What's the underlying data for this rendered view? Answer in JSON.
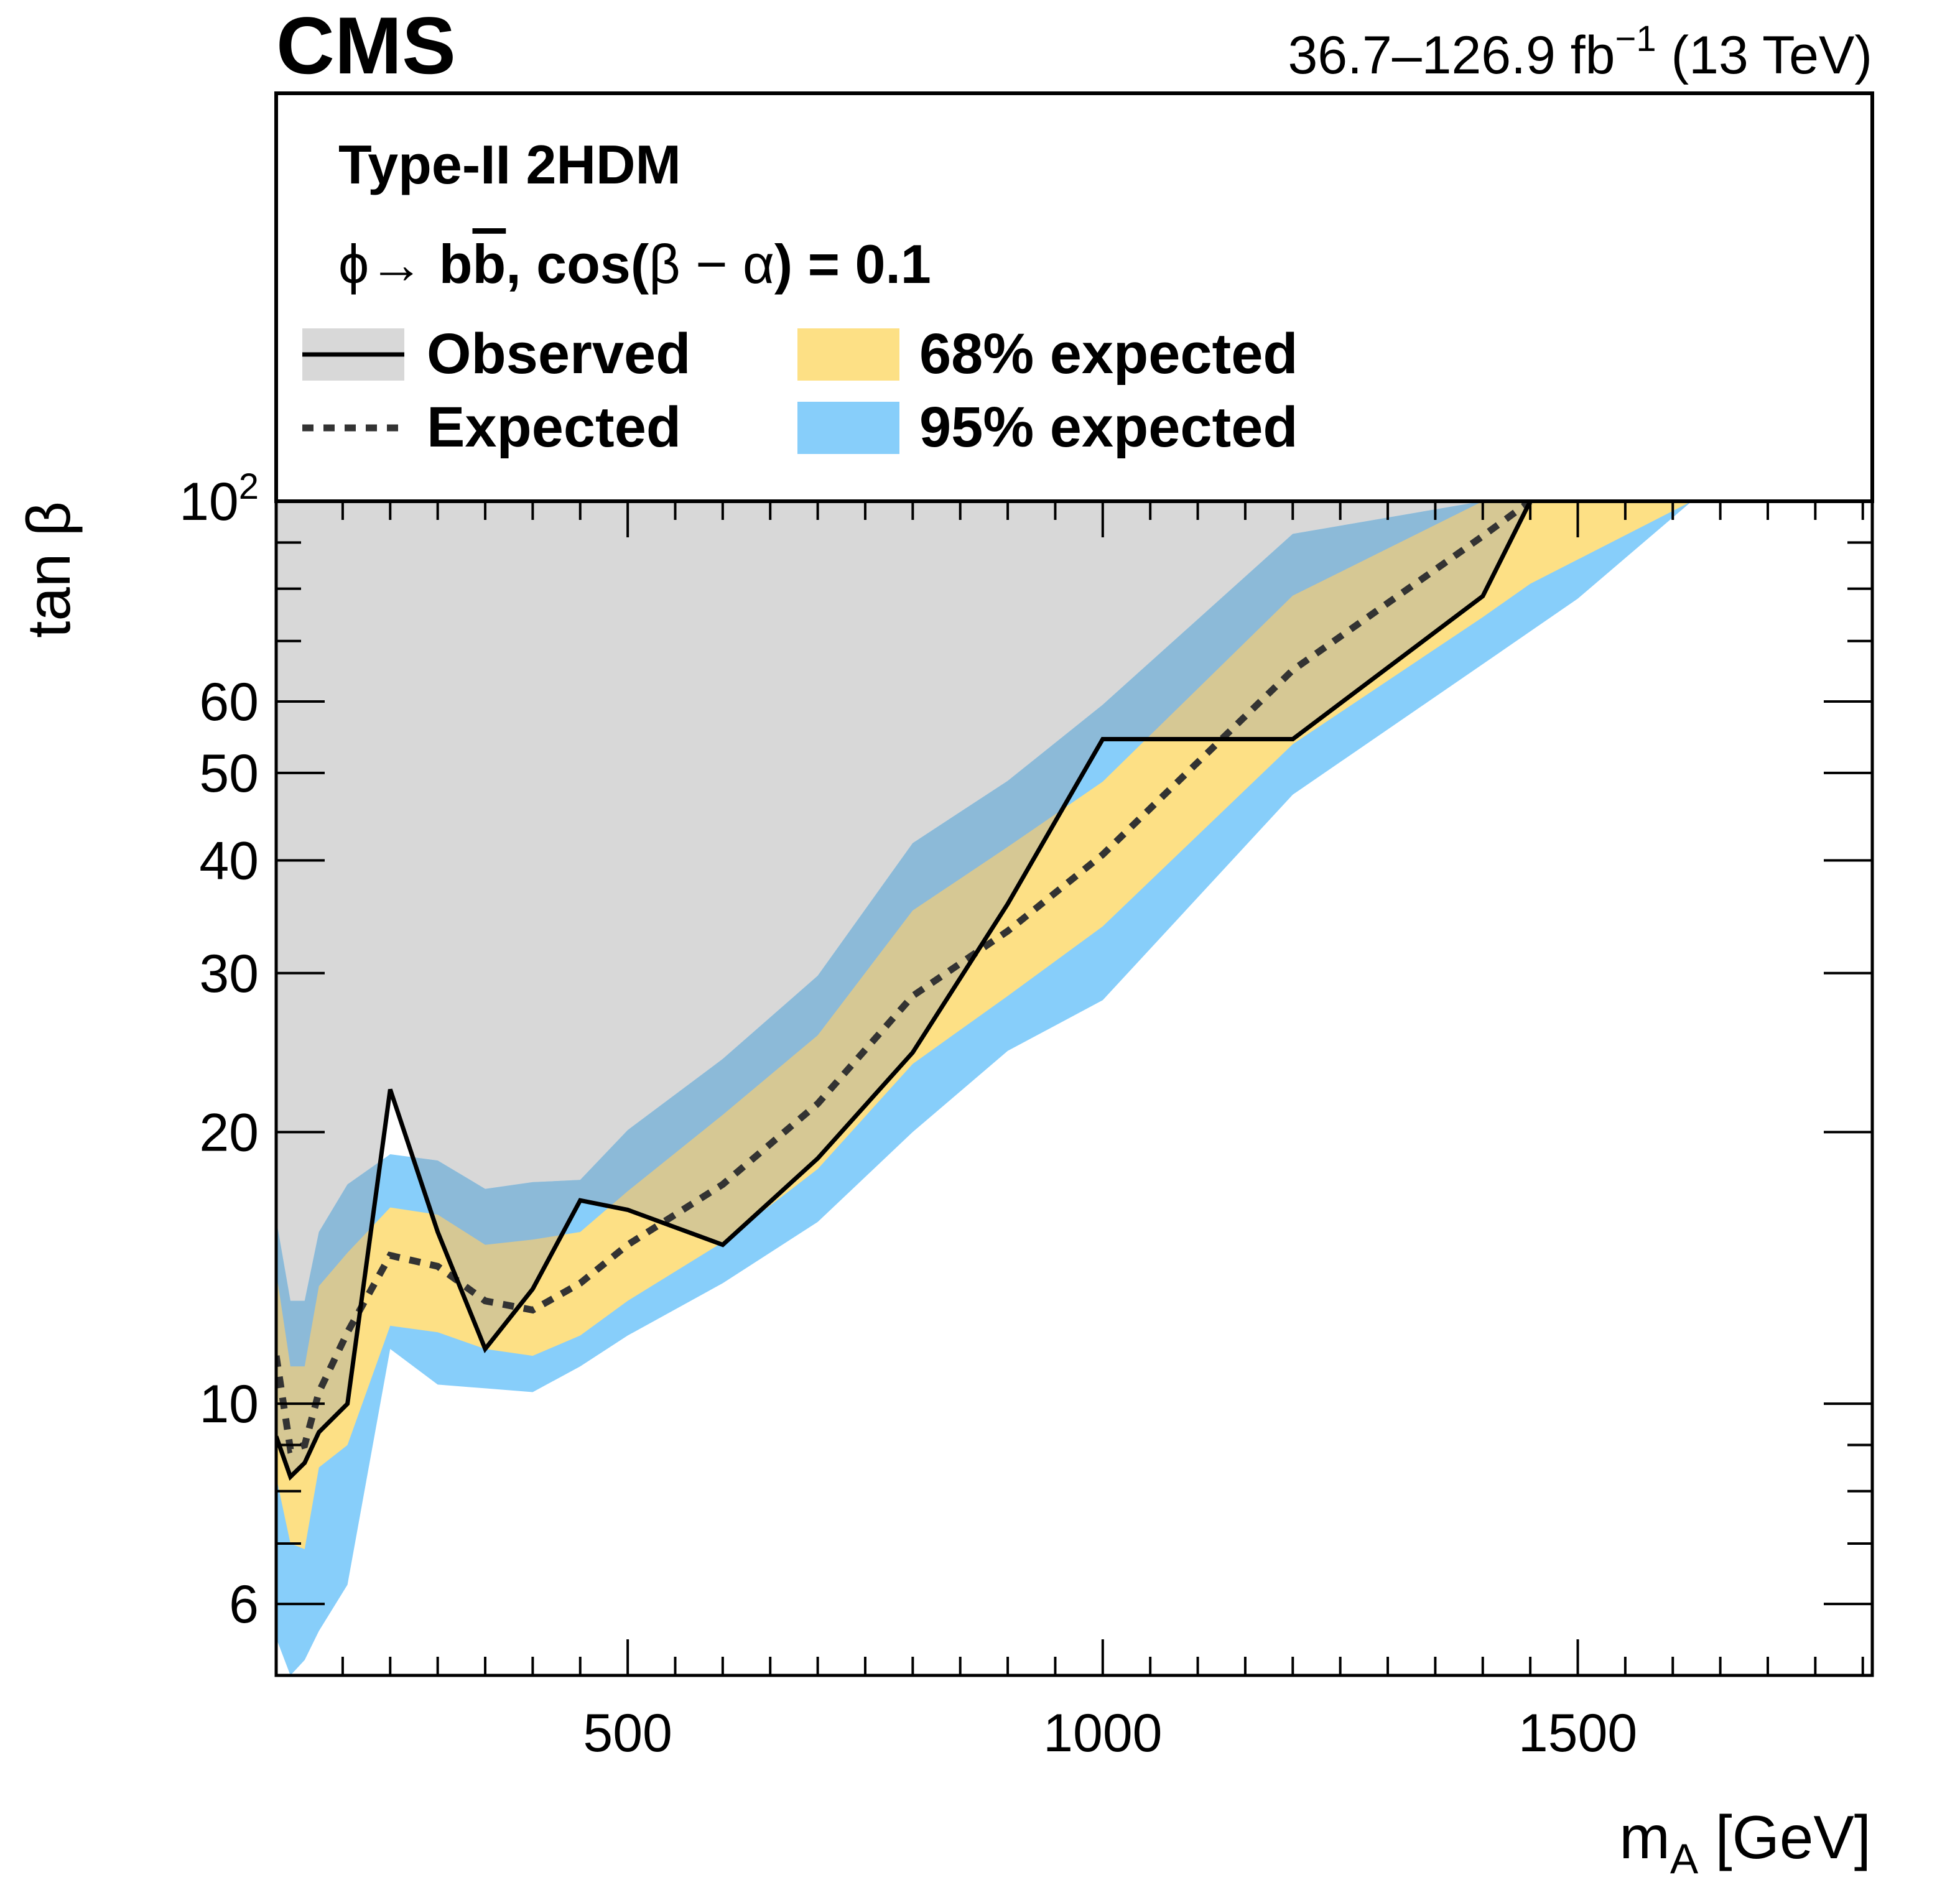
{
  "header": {
    "experiment": "CMS",
    "lumi_main": "36.7–126.9 fb",
    "lumi_exp": "−1",
    "lumi_energy": "(13 TeV)"
  },
  "legend": {
    "line1": "Type-II 2HDM",
    "line2_phi": "ϕ",
    "line2_arrow": "→",
    "line2_b1": "b",
    "line2_b2": "b",
    "line2_rest": ", cos(",
    "line2_beta": "β",
    "line2_minus": " − ",
    "line2_alpha": "α",
    "line2_end": ") = 0.1",
    "observed": "Observed",
    "expected": "Expected",
    "band68": "68% expected",
    "band95": "95% expected"
  },
  "colors": {
    "excluded": "#d8d8d8",
    "band68": "#fde085",
    "band95": "#87cefa",
    "band68_over_excluded": "#d6c894",
    "band95_over_excluded": "#8cbad8",
    "observed_line": "#000000",
    "expected_line": "#333333"
  },
  "chart_data": {
    "type": "line",
    "title": "",
    "xlabel_main": "m",
    "xlabel_sub": "A",
    "xlabel_unit": " [GeV]",
    "ylabel": "tan β",
    "x_range": [
      130,
      1810
    ],
    "y_range": [
      5,
      100
    ],
    "y_scale": "log",
    "x_ticks": [
      {
        "value": 500,
        "label": "500"
      },
      {
        "value": 1000,
        "label": "1000"
      },
      {
        "value": 1500,
        "label": "1500"
      }
    ],
    "y_ticks": [
      {
        "value": 6,
        "label": "6"
      },
      {
        "value": 10,
        "label": "10"
      },
      {
        "value": 20,
        "label": "20"
      },
      {
        "value": 30,
        "label": "30"
      },
      {
        "value": 40,
        "label": "40"
      },
      {
        "value": 50,
        "label": "50"
      },
      {
        "value": 60,
        "label": "60"
      },
      {
        "value": 100,
        "label": "10",
        "exp": "2"
      }
    ],
    "excluded_region": "above observed",
    "series": [
      {
        "name": "Observed",
        "style": "solid",
        "x": [
          130,
          145,
          160,
          175,
          205,
          250,
          300,
          350,
          400,
          450,
          500,
          600,
          700,
          800,
          900,
          1000,
          1200,
          1400,
          1450
        ],
        "y": [
          9.2,
          8.3,
          8.6,
          9.3,
          10.0,
          22.3,
          15.5,
          11.5,
          13.4,
          16.8,
          16.4,
          15.0,
          18.7,
          24.5,
          35.8,
          54.5,
          54.5,
          78.5,
          100
        ]
      },
      {
        "name": "Expected",
        "style": "dashed",
        "x": [
          130,
          145,
          160,
          175,
          205,
          250,
          300,
          350,
          400,
          450,
          500,
          600,
          700,
          800,
          900,
          1000,
          1200,
          1400,
          1450
        ],
        "y": [
          11.3,
          8.9,
          9.0,
          10.3,
          12.0,
          14.6,
          14.2,
          13.0,
          12.7,
          13.6,
          15.0,
          17.5,
          21.5,
          28.3,
          33.4,
          40.6,
          65.0,
          91.5,
          100
        ]
      }
    ],
    "band68": {
      "name": "68% expected",
      "x": [
        130,
        145,
        160,
        175,
        205,
        250,
        300,
        350,
        400,
        450,
        500,
        600,
        700,
        800,
        900,
        1000,
        1200,
        1400,
        1450,
        1620
      ],
      "upper": [
        14.0,
        11.0,
        11.0,
        13.5,
        14.7,
        16.5,
        16.2,
        15.0,
        15.2,
        15.5,
        17.2,
        20.9,
        25.6,
        35.2,
        41.4,
        48.9,
        78.6,
        100,
        100,
        100
      ],
      "lower": [
        8.3,
        7.0,
        6.9,
        8.5,
        9.0,
        12.2,
        12.0,
        11.5,
        11.3,
        11.9,
        13.0,
        15.1,
        18.2,
        23.8,
        28.3,
        33.8,
        53.8,
        74.4,
        81.0,
        100
      ]
    },
    "band95": {
      "name": "95% expected",
      "x": [
        130,
        145,
        160,
        175,
        205,
        250,
        300,
        350,
        400,
        450,
        500,
        600,
        700,
        800,
        900,
        1000,
        1200,
        1400,
        1500,
        1620,
        1810
      ],
      "upper": [
        16.0,
        13.0,
        13.0,
        15.5,
        17.5,
        18.9,
        18.6,
        17.3,
        17.6,
        17.7,
        20.1,
        24.1,
        29.8,
        41.8,
        49.0,
        59.5,
        92.0,
        100,
        100,
        100,
        100
      ],
      "lower": [
        5.5,
        5.0,
        5.2,
        5.6,
        6.3,
        11.5,
        10.5,
        10.4,
        10.3,
        11.0,
        11.9,
        13.6,
        15.9,
        20.0,
        24.6,
        28.0,
        47.3,
        66.0,
        78.0,
        100,
        100
      ]
    }
  }
}
